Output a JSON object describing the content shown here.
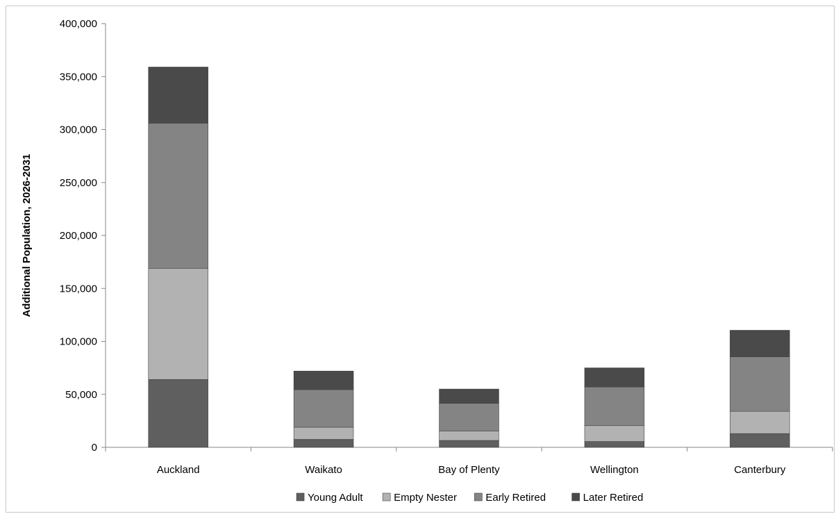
{
  "chart_data": {
    "type": "bar",
    "stacked": true,
    "title": "",
    "xlabel": "",
    "ylabel": "Additional Population, 2026-2031",
    "ylim": [
      0,
      400000
    ],
    "yticks": [
      0,
      50000,
      100000,
      150000,
      200000,
      250000,
      300000,
      350000,
      400000
    ],
    "ytick_labels": [
      "0",
      "50,000",
      "100,000",
      "150,000",
      "200,000",
      "250,000",
      "300,000",
      "350,000",
      "400,000"
    ],
    "categories": [
      "Auckland",
      "Waikato",
      "Bay of Plenty",
      "Wellington",
      "Canterbury"
    ],
    "series": [
      {
        "name": "Young Adult",
        "color": "#5f5f5f",
        "values": [
          64000,
          7500,
          6500,
          5500,
          13000
        ]
      },
      {
        "name": "Empty Nester",
        "color": "#b2b2b2",
        "values": [
          105000,
          11500,
          9000,
          15000,
          21000
        ]
      },
      {
        "name": "Early Retired",
        "color": "#848484",
        "values": [
          137000,
          35500,
          26000,
          36500,
          51500
        ]
      },
      {
        "name": "Later Retired",
        "color": "#4a4a4a",
        "values": [
          53000,
          17500,
          13500,
          18000,
          25000
        ]
      }
    ],
    "grid": false,
    "legend_position": "bottom"
  }
}
